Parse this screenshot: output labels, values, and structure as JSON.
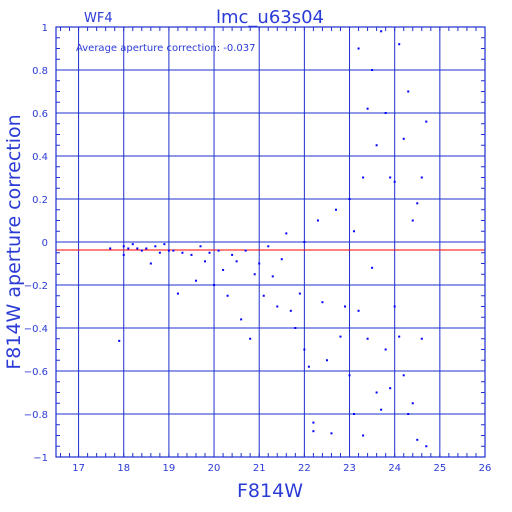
{
  "chart_data": {
    "type": "scatter",
    "title": "lmc_u63s04",
    "panel_label": "WF4",
    "annotation": "Average aperture correction: -0.037",
    "xlabel": "F814W",
    "ylabel": "F814W aperture correction",
    "xlim": [
      16.5,
      26
    ],
    "ylim": [
      -1,
      1
    ],
    "xticks": [
      "17",
      "18",
      "19",
      "20",
      "21",
      "22",
      "23",
      "24",
      "25",
      "26"
    ],
    "yticks": [
      "1",
      "0.8",
      "0.6",
      "0.4",
      "0.2",
      "0",
      "−0.2",
      "−0.4",
      "−0.6",
      "−0.8",
      "−1"
    ],
    "grid": true,
    "reference_line": {
      "y": -0.037,
      "color": "#ff0000"
    },
    "colors": {
      "axis": "#1f2fd0",
      "text": "#2b3bd6",
      "points": "#0000ff",
      "reference": "#ff0000"
    },
    "series": [
      {
        "points": [
          [
            17.7,
            -0.03
          ],
          [
            17.9,
            -0.46
          ],
          [
            18.0,
            -0.02
          ],
          [
            18.0,
            -0.06
          ],
          [
            18.1,
            -0.03
          ],
          [
            18.2,
            -0.01
          ],
          [
            18.3,
            -0.03
          ],
          [
            18.4,
            -0.04
          ],
          [
            18.5,
            -0.03
          ],
          [
            18.6,
            -0.1
          ],
          [
            18.7,
            -0.02
          ],
          [
            18.8,
            -0.05
          ],
          [
            18.9,
            -0.01
          ],
          [
            19.0,
            -0.04
          ],
          [
            19.1,
            -0.04
          ],
          [
            19.2,
            -0.24
          ],
          [
            19.3,
            -0.05
          ],
          [
            19.5,
            -0.06
          ],
          [
            19.6,
            -0.18
          ],
          [
            19.7,
            -0.02
          ],
          [
            19.8,
            -0.09
          ],
          [
            19.9,
            -0.05
          ],
          [
            20.0,
            -0.2
          ],
          [
            20.1,
            -0.04
          ],
          [
            20.2,
            -0.13
          ],
          [
            20.3,
            -0.25
          ],
          [
            20.4,
            -0.06
          ],
          [
            20.5,
            -0.09
          ],
          [
            20.6,
            -0.36
          ],
          [
            20.7,
            -0.04
          ],
          [
            20.8,
            -0.45
          ],
          [
            20.9,
            -0.15
          ],
          [
            21.0,
            -0.1
          ],
          [
            21.1,
            -0.25
          ],
          [
            21.2,
            -0.02
          ],
          [
            21.3,
            -0.16
          ],
          [
            21.4,
            -0.3
          ],
          [
            21.5,
            -0.08
          ],
          [
            21.6,
            0.04
          ],
          [
            21.7,
            -0.32
          ],
          [
            21.8,
            -0.4
          ],
          [
            21.9,
            -0.24
          ],
          [
            22.0,
            0.0
          ],
          [
            22.0,
            -0.5
          ],
          [
            22.1,
            -0.58
          ],
          [
            22.2,
            -0.84
          ],
          [
            22.2,
            -0.88
          ],
          [
            22.3,
            0.1
          ],
          [
            22.4,
            -0.28
          ],
          [
            22.5,
            -0.55
          ],
          [
            22.6,
            -0.89
          ],
          [
            22.7,
            0.15
          ],
          [
            22.8,
            -0.44
          ],
          [
            22.9,
            -0.3
          ],
          [
            23.0,
            0.2
          ],
          [
            23.0,
            -0.62
          ],
          [
            23.1,
            0.05
          ],
          [
            23.1,
            -0.8
          ],
          [
            23.2,
            0.9
          ],
          [
            23.2,
            -0.32
          ],
          [
            23.3,
            0.3
          ],
          [
            23.3,
            -0.9
          ],
          [
            23.4,
            0.62
          ],
          [
            23.4,
            -0.45
          ],
          [
            23.5,
            0.8
          ],
          [
            23.5,
            -0.12
          ],
          [
            23.6,
            0.45
          ],
          [
            23.6,
            -0.7
          ],
          [
            23.7,
            0.98
          ],
          [
            23.7,
            -0.78
          ],
          [
            23.8,
            0.6
          ],
          [
            23.8,
            -0.5
          ],
          [
            23.9,
            0.3
          ],
          [
            23.9,
            -0.68
          ],
          [
            24.0,
            0.28
          ],
          [
            24.0,
            -0.3
          ],
          [
            24.1,
            0.92
          ],
          [
            24.1,
            -0.44
          ],
          [
            24.2,
            0.48
          ],
          [
            24.2,
            -0.62
          ],
          [
            24.3,
            0.7
          ],
          [
            24.3,
            -0.8
          ],
          [
            24.4,
            0.1
          ],
          [
            24.4,
            -0.75
          ],
          [
            24.5,
            0.18
          ],
          [
            24.5,
            -0.92
          ],
          [
            24.6,
            0.3
          ],
          [
            24.6,
            -0.45
          ],
          [
            24.7,
            0.56
          ],
          [
            24.7,
            -0.95
          ]
        ]
      }
    ]
  }
}
